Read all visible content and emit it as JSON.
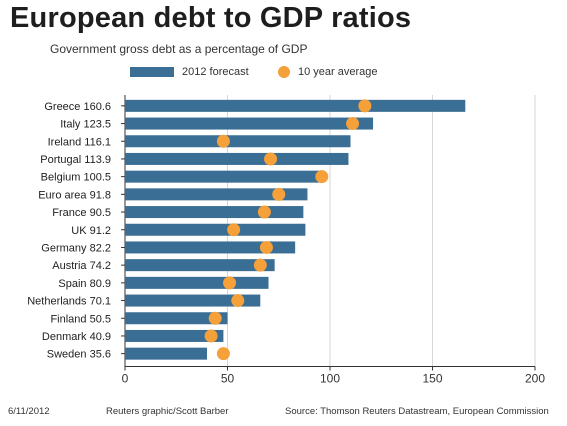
{
  "title": "European debt to GDP ratios",
  "subtitle": "Government gross debt as a percentage of GDP",
  "colors": {
    "bar": "#3b6e95",
    "dot": "#f5a038",
    "grid": "#d6d6d6",
    "axis": "#333333"
  },
  "chart_data": {
    "type": "bar",
    "orientation": "horizontal",
    "categories": [
      "Greece 160.6",
      "Italy 123.5",
      "Ireland 116.1",
      "Portugal 113.9",
      "Belgium 100.5",
      "Euro area 91.8",
      "France 90.5",
      "UK 91.2",
      "Germany 82.2",
      "Austria 74.2",
      "Spain 80.9",
      "Netherlands 70.1",
      "Finland 50.5",
      "Denmark 40.9",
      "Sweden 35.6"
    ],
    "series": [
      {
        "name": "2012 forecast",
        "type": "bar",
        "values": [
          166,
          121,
          110,
          109,
          97,
          89,
          87,
          88,
          83,
          73,
          70,
          66,
          50,
          48,
          40
        ]
      },
      {
        "name": "10 year average",
        "type": "scatter",
        "values": [
          117,
          111,
          48,
          71,
          96,
          75,
          68,
          53,
          69,
          66,
          51,
          55,
          44,
          42,
          48
        ]
      }
    ],
    "xlim": [
      0,
      200
    ],
    "xticks": [
      "0",
      "50",
      "100",
      "150",
      "200"
    ],
    "grid": true,
    "legend": "top"
  },
  "footer": {
    "date": "6/11/2012",
    "credit": "Reuters graphic/Scott Barber",
    "source": "Source: Thomson Reuters Datastream, European Commission"
  }
}
